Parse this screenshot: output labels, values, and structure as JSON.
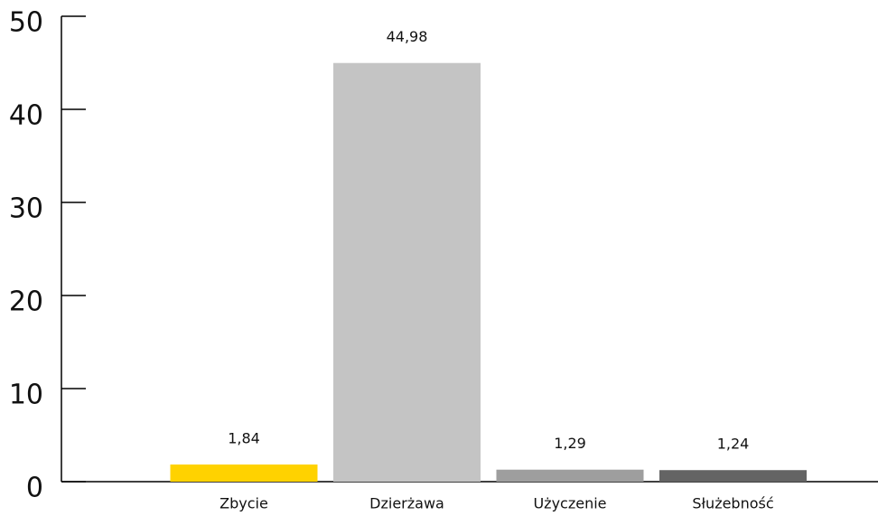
{
  "chart_data": {
    "type": "bar",
    "categories": [
      "Zbycie",
      "Dzierżawa",
      "Użyczenie",
      "Służebność"
    ],
    "values": [
      1.84,
      44.98,
      1.29,
      1.24
    ],
    "value_labels": [
      "1,84",
      "44,98",
      "1,29",
      "1,24"
    ],
    "colors": [
      "#ffd200",
      "#c4c4c4",
      "#9e9e9e",
      "#646464"
    ],
    "ylim": [
      0,
      50
    ],
    "yticks": [
      0,
      10,
      20,
      30,
      40,
      50
    ]
  }
}
